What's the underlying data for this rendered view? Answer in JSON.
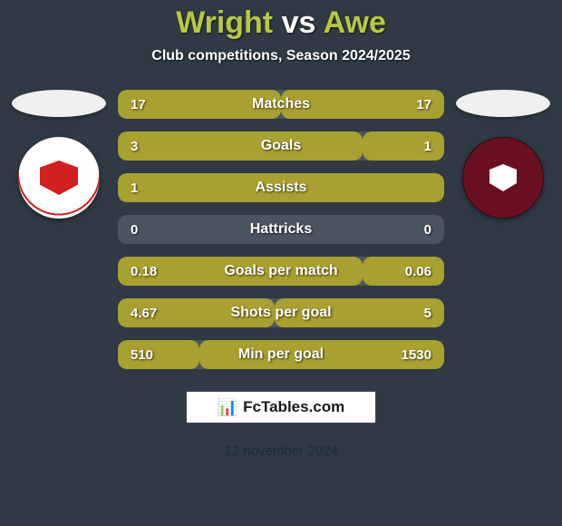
{
  "title": {
    "player1": "Wright",
    "vs": "vs",
    "player2": "Awe",
    "color_p1": "#b8c840",
    "color_vs": "#ffffff",
    "color_p2": "#b8c840"
  },
  "subtitle": "Club competitions, Season 2024/2025",
  "background_color": "#2f3a45",
  "stat_track_color": "#4a5560",
  "bar_color_p1": "#a8a030",
  "bar_color_p2": "#a8a030",
  "flag_p1_color": "#f0f0f0",
  "flag_p2_color": "#f0f0f0",
  "stats": [
    {
      "label": "Matches",
      "v1": "17",
      "v2": "17",
      "w1": 50,
      "w2": 50
    },
    {
      "label": "Goals",
      "v1": "3",
      "v2": "1",
      "w1": 75,
      "w2": 25
    },
    {
      "label": "Assists",
      "v1": "1",
      "v2": "",
      "w1": 100,
      "w2": 0
    },
    {
      "label": "Hattricks",
      "v1": "0",
      "v2": "0",
      "w1": 0,
      "w2": 0
    },
    {
      "label": "Goals per match",
      "v1": "0.18",
      "v2": "0.06",
      "w1": 75,
      "w2": 25
    },
    {
      "label": "Shots per goal",
      "v1": "4.67",
      "v2": "5",
      "w1": 48,
      "w2": 52
    },
    {
      "label": "Min per goal",
      "v1": "510",
      "v2": "1530",
      "w1": 25,
      "w2": 75
    }
  ],
  "footer": {
    "brand_icon": "📊",
    "brand_text": "FcTables.com",
    "date": "12 november 2024"
  }
}
